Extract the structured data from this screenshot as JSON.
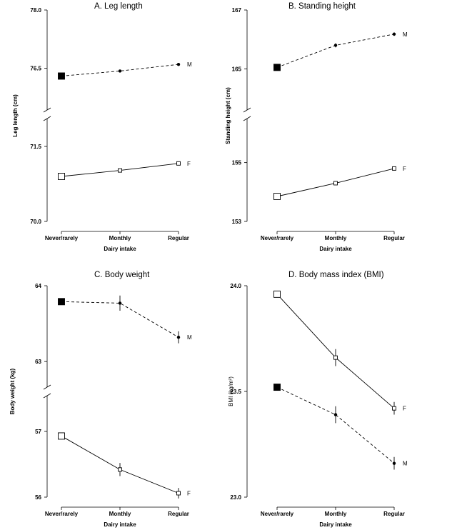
{
  "chart_data": [
    {
      "type": "line",
      "title": "A. Leg length",
      "xlabel": "Dairy intake",
      "ylabel": "Leg length (cm)",
      "categories": [
        "Never/rarely",
        "Monthly",
        "Regular"
      ],
      "axis_break": true,
      "upper_ylim": [
        75.5,
        78.0
      ],
      "lower_ylim": [
        70.0,
        72.0
      ],
      "yticks_upper": [
        "78.0",
        "76.5"
      ],
      "yticks_lower": [
        "71.5",
        "70.0"
      ],
      "series": [
        {
          "name": "M",
          "values": [
            76.3,
            76.43,
            76.6
          ],
          "errors": [
            0.0,
            0.03,
            0.03
          ],
          "line": "dashed",
          "marker": "filled-square"
        },
        {
          "name": "F",
          "values": [
            70.9,
            71.02,
            71.16
          ],
          "errors": [
            0.0,
            0.0,
            0.0
          ],
          "line": "solid",
          "marker": "open-square"
        }
      ]
    },
    {
      "type": "line",
      "title": "B. Standing height",
      "xlabel": "Dairy intake",
      "ylabel": "Standing height (cm)",
      "categories": [
        "Never/rarely",
        "Monthly",
        "Regular"
      ],
      "axis_break": true,
      "upper_ylim": [
        163.7,
        167.0
      ],
      "lower_ylim": [
        153.0,
        156.4
      ],
      "yticks_upper": [
        "167",
        "165"
      ],
      "yticks_lower": [
        "155",
        "153"
      ],
      "series": [
        {
          "name": "M",
          "values": [
            165.05,
            165.8,
            166.18
          ],
          "errors": [
            0.0,
            0.07,
            0.06
          ],
          "line": "dashed",
          "marker": "filled-square"
        },
        {
          "name": "F",
          "values": [
            153.85,
            154.3,
            154.8
          ],
          "errors": [
            0.0,
            0.0,
            0.0
          ],
          "line": "solid",
          "marker": "open-square"
        }
      ]
    },
    {
      "type": "line",
      "title": "C. Body weight",
      "xlabel": "Dairy intake",
      "ylabel": "Body weight (kg)",
      "categories": [
        "Never/rarely",
        "Monthly",
        "Regular"
      ],
      "axis_break": true,
      "upper_ylim": [
        62.7,
        64.0
      ],
      "lower_ylim": [
        56.0,
        57.5
      ],
      "yticks_upper": [
        "64",
        "63"
      ],
      "yticks_lower": [
        "57",
        "56"
      ],
      "series": [
        {
          "name": "M",
          "values": [
            63.79,
            63.77,
            63.32
          ],
          "errors": [
            0.03,
            0.1,
            0.08
          ],
          "line": "dashed",
          "marker": "filled-square"
        },
        {
          "name": "F",
          "values": [
            56.93,
            56.42,
            56.06
          ],
          "errors": [
            0.0,
            0.1,
            0.08
          ],
          "line": "solid",
          "marker": "open-square"
        }
      ]
    },
    {
      "type": "line",
      "title": "D. Body mass index (BMI)",
      "xlabel": "Dairy intake",
      "ylabel": "BMI (kg/m²)",
      "categories": [
        "Never/rarely",
        "Monthly",
        "Regular"
      ],
      "axis_break": false,
      "ylim": [
        23.0,
        24.0
      ],
      "yticks": [
        "24.0",
        "23.5",
        "23.0"
      ],
      "series": [
        {
          "name": "F",
          "values": [
            23.96,
            23.66,
            23.42
          ],
          "errors": [
            0.0,
            0.04,
            0.03
          ],
          "line": "solid",
          "marker": "open-square"
        },
        {
          "name": "M",
          "values": [
            23.52,
            23.39,
            23.16
          ],
          "errors": [
            0.0,
            0.04,
            0.03
          ],
          "line": "dashed",
          "marker": "filled-square"
        }
      ]
    }
  ]
}
